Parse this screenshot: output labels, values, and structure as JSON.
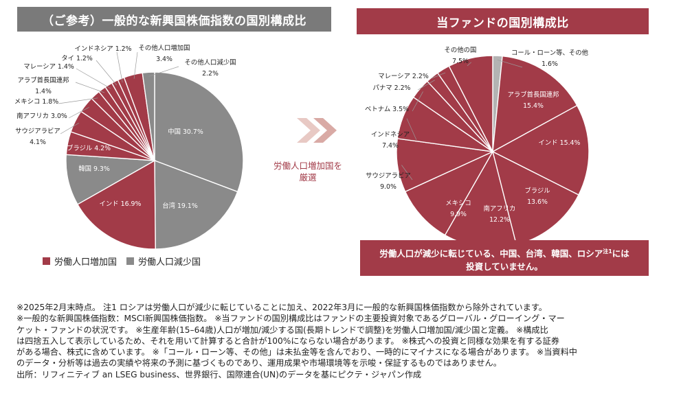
{
  "colors": {
    "increase": "#a23b48",
    "decrease": "#8a8a8a",
    "header_gray": "#7a7a7a",
    "accent": "#a23b48"
  },
  "left_header": "（ご参考）一般的な新興国株価指数の国別構成比",
  "right_header": "当ファンドの国別構成比",
  "legend": {
    "increase": "労働人口増加国",
    "decrease": "労働人口減少国"
  },
  "arrow_text": {
    "line1": "労働人口増加国を",
    "line2": "厳選"
  },
  "note_box": {
    "line1_a": "労働人口が減少に転じている、中国、台湾、韓国、ロシア",
    "line1_sup": "注1",
    "line1_b": "には",
    "line2": "投資していません。"
  },
  "footer": [
    "※2025年2月末時点。 注1 ロシアは労働人口が減少に転じていることに加え、2022年3月に一般的な新興国株価指数から除外されています。",
    "※一般的な新興国株価指数：MSCI新興国株価指数。 ※当ファンドの国別構成比はファンドの主要投資対象であるグローバル・グローイング・マー",
    "ケット・ファンドの状況です。 ※生産年齢(15–64歳)人口が増加/減少する国(長期トレンドで調整)を労働人口増加国/減少国と定義。 ※構成比",
    "は四捨五入して表示しているため、それを用いて計算すると合計が100%にならない場合があります。 ※株式への投資と同様な効果を有する証券",
    "がある場合、株式に含めています。 ※「コール・ローン等、その他」は未払金等を含んでおり、一時的にマイナスになる場合があります。 ※当資料中",
    "のデータ・分析等は過去の実績や将来の予測に基づくものであり、運用成果や市場環境等を示唆・保証するものではありません。",
    "出所：リフィニティブ an LSEG business、世界銀行、国際連合(UN)のデータを基にピクテ・ジャパン作成"
  ],
  "chart_data": [
    {
      "type": "pie",
      "title": "（ご参考）一般的な新興国株価指数の国別構成比",
      "unit": "%",
      "slices": [
        {
          "label": "中国",
          "value": 30.7,
          "display": "30.7%",
          "group": "decrease"
        },
        {
          "label": "台湾",
          "value": 19.1,
          "display": "19.1%",
          "group": "decrease"
        },
        {
          "label": "インド",
          "value": 16.9,
          "display": "16.9%",
          "group": "increase"
        },
        {
          "label": "韓国",
          "value": 9.3,
          "display": "9.3%",
          "group": "decrease"
        },
        {
          "label": "ブラジル",
          "value": 4.2,
          "display": "4.2%",
          "group": "increase"
        },
        {
          "label": "サウジアラビア",
          "value": 4.1,
          "display": "4.1%",
          "group": "increase"
        },
        {
          "label": "南アフリカ",
          "value": 3.0,
          "display": "3.0%",
          "group": "increase"
        },
        {
          "label": "メキシコ",
          "value": 1.8,
          "display": "1.8%",
          "group": "increase"
        },
        {
          "label": "アラブ首長国連邦",
          "value": 1.4,
          "display": "1.4%",
          "group": "increase"
        },
        {
          "label": "マレーシア",
          "value": 1.4,
          "display": "1.4%",
          "group": "increase"
        },
        {
          "label": "タイ",
          "value": 1.2,
          "display": "1.2%",
          "group": "increase"
        },
        {
          "label": "インドネシア",
          "value": 1.2,
          "display": "1.2%",
          "group": "increase"
        },
        {
          "label": "その他人口増加国",
          "value": 3.4,
          "display": "3.4%",
          "group": "increase"
        },
        {
          "label": "その他人口減少国",
          "value": 2.2,
          "display": "2.2%",
          "group": "decrease"
        }
      ]
    },
    {
      "type": "pie",
      "title": "当ファンドの国別構成比",
      "unit": "%",
      "slices": [
        {
          "label": "アラブ首長国連邦",
          "value": 15.4,
          "display": "15.4%",
          "group": "increase"
        },
        {
          "label": "インド",
          "value": 15.4,
          "display": "15.4%",
          "group": "increase"
        },
        {
          "label": "ブラジル",
          "value": 13.6,
          "display": "13.6%",
          "group": "increase"
        },
        {
          "label": "南アフリカ",
          "value": 12.2,
          "display": "12.2%",
          "group": "increase"
        },
        {
          "label": "メキシコ",
          "value": 9.9,
          "display": "9.9%",
          "group": "increase"
        },
        {
          "label": "サウジアラビア",
          "value": 9.0,
          "display": "9.0%",
          "group": "increase"
        },
        {
          "label": "インドネシア",
          "value": 7.4,
          "display": "7.4%",
          "group": "increase"
        },
        {
          "label": "ベトナム",
          "value": 3.5,
          "display": "3.5%",
          "group": "increase"
        },
        {
          "label": "パナマ",
          "value": 2.2,
          "display": "2.2%",
          "group": "increase"
        },
        {
          "label": "マレーシア",
          "value": 2.2,
          "display": "2.2%",
          "group": "increase"
        },
        {
          "label": "その他の国",
          "value": 7.5,
          "display": "7.5%",
          "group": "increase"
        },
        {
          "label": "コール・ローン等、その他",
          "value": 1.6,
          "display": "1.6%",
          "group": "cash"
        }
      ]
    }
  ]
}
